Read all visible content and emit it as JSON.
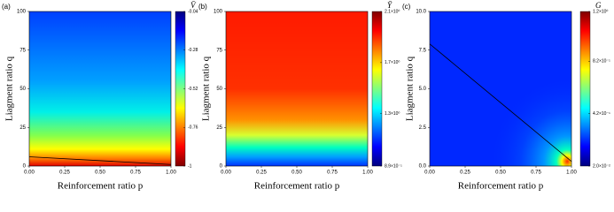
{
  "chart_data": [
    {
      "type": "heatmap",
      "panel_label": "(a)",
      "xlabel": "Reinforcement ratio p",
      "ylabel": "Liagment ratio q",
      "xlim": [
        0,
        1
      ],
      "ylim": [
        0,
        100
      ],
      "xticks": [
        {
          "value": 0,
          "label": "0.00"
        },
        {
          "value": 0.25,
          "label": "0.25"
        },
        {
          "value": 0.5,
          "label": "0.50"
        },
        {
          "value": 0.75,
          "label": "0.75"
        },
        {
          "value": 1,
          "label": "1.00"
        }
      ],
      "yticks": [
        0,
        25,
        50,
        75,
        100
      ],
      "field": "rising",
      "colormap_reversed": true,
      "colorbar_label": "V̄",
      "clim": [
        -1,
        -0.04
      ],
      "cticks": [
        -0.04,
        -0.28,
        -0.52,
        -0.76,
        -1
      ],
      "lines": [
        {
          "color": "#000000",
          "x": [
            0,
            1
          ],
          "values": [
            6,
            1
          ]
        }
      ]
    },
    {
      "type": "heatmap",
      "panel_label": "(b)",
      "xlabel": "Reinforcement ratio p",
      "ylabel": "Liagment ratio q",
      "xlim": [
        0,
        1
      ],
      "ylim": [
        0,
        100
      ],
      "xticks": [
        {
          "value": 0,
          "label": "0.00"
        },
        {
          "value": 0.25,
          "label": "0.25"
        },
        {
          "value": 0.5,
          "label": "0.50"
        },
        {
          "value": 0.75,
          "label": "0.75"
        },
        {
          "value": 1,
          "label": "1.00"
        }
      ],
      "yticks": [
        0,
        25,
        50,
        75,
        100
      ],
      "field": "falling",
      "colormap_reversed": false,
      "colorbar_label": "Ȳ",
      "clim": [
        0.89,
        2.1
      ],
      "cticks": [
        {
          "value": 2.1,
          "label": "2.1×10⁰"
        },
        {
          "value": 1.7,
          "label": "1.7×10⁰"
        },
        {
          "value": 1.3,
          "label": "1.3×10⁰"
        },
        {
          "value": 0.89,
          "label": "8.9×10⁻¹"
        }
      ],
      "lines": []
    },
    {
      "type": "heatmap",
      "panel_label": "(c)",
      "xlabel": "Reinforcement ratio p",
      "ylabel": "Liagment ratio q",
      "xlim": [
        0,
        1
      ],
      "ylim": [
        0,
        10
      ],
      "xticks": [
        {
          "value": 0,
          "label": "0.00"
        },
        {
          "value": 0.25,
          "label": "0.25"
        },
        {
          "value": 0.5,
          "label": "0.50"
        },
        {
          "value": 0.75,
          "label": "0.75"
        },
        {
          "value": 1,
          "label": "1.00"
        }
      ],
      "yticks": [
        {
          "value": 0,
          "label": "0.0"
        },
        {
          "value": 2.5,
          "label": "2.5"
        },
        {
          "value": 5,
          "label": "5.0"
        },
        {
          "value": 7.5,
          "label": "7.5"
        },
        {
          "value": 10,
          "label": "10.0"
        }
      ],
      "field": "corner",
      "colormap_reversed": false,
      "colorbar_label": "G",
      "clim": [
        0.02,
        1.2
      ],
      "cticks": [
        {
          "value": 1.2,
          "label": "1.2×10⁰"
        },
        {
          "value": 0.82,
          "label": "8.2×10⁻¹"
        },
        {
          "value": 0.42,
          "label": "4.2×10⁻¹"
        },
        {
          "value": 0.02,
          "label": "2.0×10⁻²"
        }
      ],
      "lines": [
        {
          "color": "#000000",
          "x": [
            0,
            1
          ],
          "values": [
            7.9,
            0.3
          ]
        }
      ]
    }
  ]
}
